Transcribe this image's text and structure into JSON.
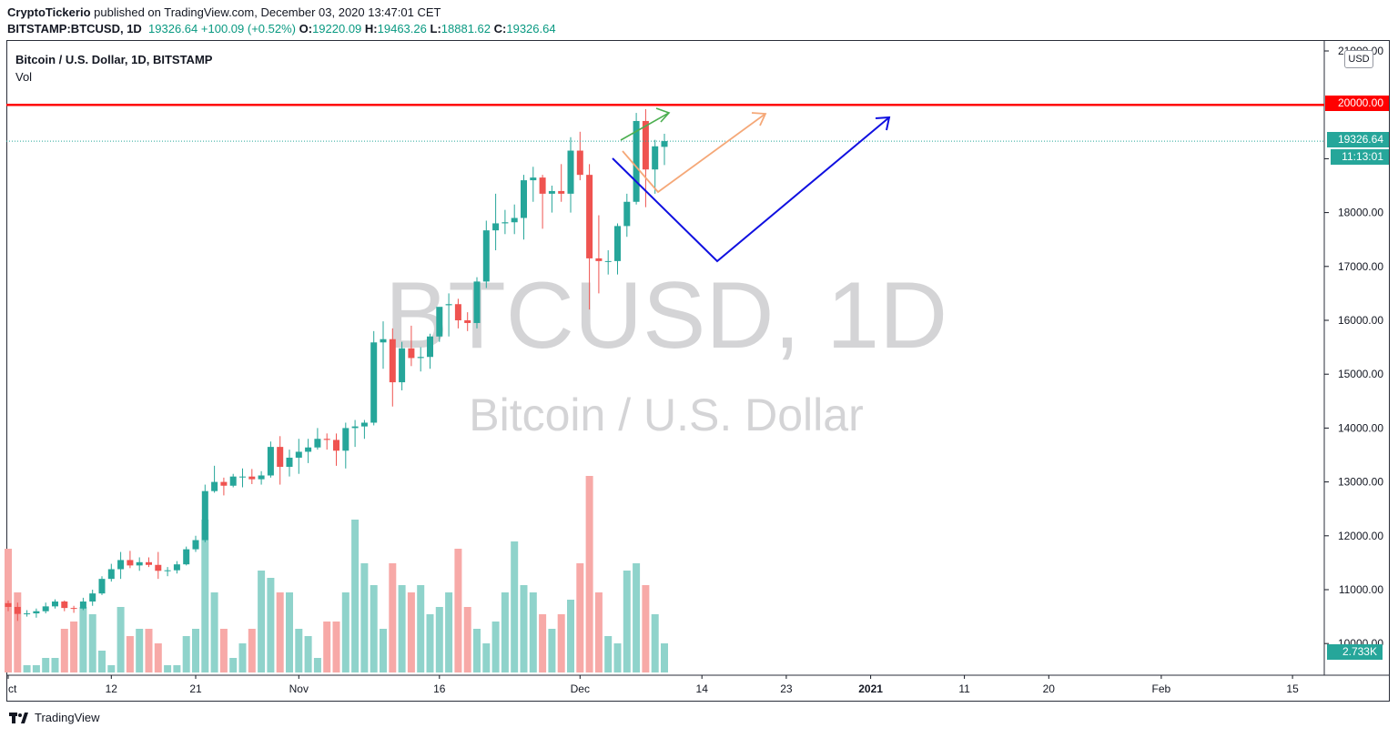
{
  "header": {
    "publisher": "CryptoTickerio",
    "published_text": "published on TradingView.com, December 03, 2020 13:47:01 CET",
    "symbol": "BITSTAMP:BTCUSD, 1D",
    "last": "19326.64",
    "change": "+100.09 (+0.52%)",
    "o_label": "O:",
    "o_value": "19220.09",
    "h_label": "H:",
    "h_value": "19463.26",
    "l_label": "L:",
    "l_value": "18881.62",
    "c_label": "C:",
    "c_value": "19326.64"
  },
  "pane": {
    "title": "Bitcoin / U.S. Dollar, 1D, BITSTAMP",
    "indicator": "Vol",
    "currency": "USD"
  },
  "watermark": {
    "line1": "BTCUSD, 1D",
    "line2": "Bitcoin / U.S. Dollar"
  },
  "price_labels": {
    "resistance": "20000.00",
    "last_price": "19326.64",
    "countdown": "11:13:01",
    "volume": "2.733K"
  },
  "footer": {
    "brand": "TradingView"
  },
  "colors": {
    "up": "#26a69a",
    "down": "#ef5350",
    "vol_up": "#8fd3cb",
    "vol_down": "#f7a9a7",
    "resistance": "#ff0000",
    "arrow_green": "#4caf50",
    "arrow_orange": "#f5a878",
    "arrow_blue": "#1010e0",
    "axis_text": "#131722"
  },
  "chart_data": {
    "type": "candlestick",
    "title": "Bitcoin / U.S. Dollar, 1D, BITSTAMP",
    "y_ticks": [
      10000,
      11000,
      12000,
      13000,
      14000,
      15000,
      16000,
      17000,
      18000,
      19000,
      20000,
      21000
    ],
    "y_tick_labels": [
      "10000.00",
      "11000.00",
      "12000.00",
      "13000.00",
      "14000.00",
      "15000.00",
      "16000.00",
      "17000.00",
      "18000.00",
      "19000.00",
      "",
      "21000.00"
    ],
    "ylim": [
      9600,
      21100
    ],
    "x_ticks": [
      {
        "label": "ct",
        "index": 0
      },
      {
        "label": "12",
        "index": 11
      },
      {
        "label": "21",
        "index": 20
      },
      {
        "label": "Nov",
        "index": 31
      },
      {
        "label": "16",
        "index": 46
      },
      {
        "label": "Dec",
        "index": 61
      },
      {
        "label": "14",
        "index": 74
      },
      {
        "label": "23",
        "index": 83
      },
      {
        "label": "2021",
        "index": 92
      },
      {
        "label": "11",
        "index": 102
      },
      {
        "label": "20",
        "index": 111
      },
      {
        "label": "Feb",
        "index": 123
      },
      {
        "label": "15",
        "index": 137
      }
    ],
    "x_axis_days": 138,
    "candles": [
      {
        "o": 10750,
        "h": 10800,
        "l": 10600,
        "c": 10680
      },
      {
        "o": 10680,
        "h": 10760,
        "l": 10420,
        "c": 10550
      },
      {
        "o": 10550,
        "h": 10620,
        "l": 10500,
        "c": 10560
      },
      {
        "o": 10560,
        "h": 10650,
        "l": 10480,
        "c": 10600
      },
      {
        "o": 10600,
        "h": 10760,
        "l": 10560,
        "c": 10690
      },
      {
        "o": 10690,
        "h": 10820,
        "l": 10650,
        "c": 10780
      },
      {
        "o": 10780,
        "h": 10800,
        "l": 10600,
        "c": 10660
      },
      {
        "o": 10660,
        "h": 10700,
        "l": 10570,
        "c": 10650
      },
      {
        "o": 10650,
        "h": 10850,
        "l": 10620,
        "c": 10780
      },
      {
        "o": 10780,
        "h": 11000,
        "l": 10700,
        "c": 10930
      },
      {
        "o": 10930,
        "h": 11250,
        "l": 10900,
        "c": 11200
      },
      {
        "o": 11200,
        "h": 11480,
        "l": 11150,
        "c": 11380
      },
      {
        "o": 11380,
        "h": 11700,
        "l": 11200,
        "c": 11550
      },
      {
        "o": 11550,
        "h": 11720,
        "l": 11400,
        "c": 11450
      },
      {
        "o": 11450,
        "h": 11600,
        "l": 11350,
        "c": 11510
      },
      {
        "o": 11510,
        "h": 11600,
        "l": 11420,
        "c": 11460
      },
      {
        "o": 11460,
        "h": 11700,
        "l": 11200,
        "c": 11350
      },
      {
        "o": 11350,
        "h": 11420,
        "l": 11250,
        "c": 11360
      },
      {
        "o": 11360,
        "h": 11530,
        "l": 11300,
        "c": 11470
      },
      {
        "o": 11470,
        "h": 11800,
        "l": 11450,
        "c": 11750
      },
      {
        "o": 11750,
        "h": 12000,
        "l": 11700,
        "c": 11920
      },
      {
        "o": 11920,
        "h": 12950,
        "l": 11880,
        "c": 12830
      },
      {
        "o": 12830,
        "h": 13300,
        "l": 12800,
        "c": 13000
      },
      {
        "o": 13000,
        "h": 13080,
        "l": 12750,
        "c": 12930
      },
      {
        "o": 12930,
        "h": 13150,
        "l": 12900,
        "c": 13100
      },
      {
        "o": 13100,
        "h": 13250,
        "l": 12900,
        "c": 13100
      },
      {
        "o": 13100,
        "h": 13240,
        "l": 12960,
        "c": 13050
      },
      {
        "o": 13050,
        "h": 13200,
        "l": 12950,
        "c": 13120
      },
      {
        "o": 13120,
        "h": 13750,
        "l": 13080,
        "c": 13650
      },
      {
        "o": 13650,
        "h": 13850,
        "l": 12950,
        "c": 13280
      },
      {
        "o": 13280,
        "h": 13600,
        "l": 13100,
        "c": 13450
      },
      {
        "o": 13450,
        "h": 13800,
        "l": 13150,
        "c": 13560
      },
      {
        "o": 13560,
        "h": 13800,
        "l": 13350,
        "c": 13640
      },
      {
        "o": 13640,
        "h": 14000,
        "l": 13600,
        "c": 13800
      },
      {
        "o": 13800,
        "h": 13900,
        "l": 13600,
        "c": 13780
      },
      {
        "o": 13780,
        "h": 13900,
        "l": 13300,
        "c": 13580
      },
      {
        "o": 13580,
        "h": 14100,
        "l": 13250,
        "c": 14000
      },
      {
        "o": 14000,
        "h": 14150,
        "l": 13650,
        "c": 14030
      },
      {
        "o": 14030,
        "h": 14150,
        "l": 13800,
        "c": 14100
      },
      {
        "o": 14100,
        "h": 15800,
        "l": 14050,
        "c": 15590
      },
      {
        "o": 15590,
        "h": 15980,
        "l": 15100,
        "c": 15650
      },
      {
        "o": 15650,
        "h": 15850,
        "l": 14400,
        "c": 14850
      },
      {
        "o": 14850,
        "h": 15600,
        "l": 14700,
        "c": 15480
      },
      {
        "o": 15480,
        "h": 15900,
        "l": 15150,
        "c": 15300
      },
      {
        "o": 15300,
        "h": 15500,
        "l": 15050,
        "c": 15320
      },
      {
        "o": 15320,
        "h": 15750,
        "l": 15100,
        "c": 15700
      },
      {
        "o": 15700,
        "h": 16200,
        "l": 15600,
        "c": 16250
      },
      {
        "o": 16280,
        "h": 16500,
        "l": 15700,
        "c": 16300
      },
      {
        "o": 16300,
        "h": 16400,
        "l": 15850,
        "c": 16000
      },
      {
        "o": 16000,
        "h": 16150,
        "l": 15800,
        "c": 15950
      },
      {
        "o": 15950,
        "h": 16800,
        "l": 15850,
        "c": 16720
      },
      {
        "o": 16720,
        "h": 17850,
        "l": 16600,
        "c": 17670
      },
      {
        "o": 17670,
        "h": 18350,
        "l": 17300,
        "c": 17800
      },
      {
        "o": 17800,
        "h": 18050,
        "l": 17600,
        "c": 17820
      },
      {
        "o": 17820,
        "h": 18150,
        "l": 17600,
        "c": 17900
      },
      {
        "o": 17900,
        "h": 18700,
        "l": 17500,
        "c": 18600
      },
      {
        "o": 18600,
        "h": 18850,
        "l": 18200,
        "c": 18650
      },
      {
        "o": 18650,
        "h": 18700,
        "l": 17700,
        "c": 18350
      },
      {
        "o": 18350,
        "h": 18500,
        "l": 18000,
        "c": 18400
      },
      {
        "o": 18400,
        "h": 18900,
        "l": 18200,
        "c": 18350
      },
      {
        "o": 18350,
        "h": 19400,
        "l": 18000,
        "c": 19150
      },
      {
        "o": 19150,
        "h": 19500,
        "l": 18600,
        "c": 18700
      },
      {
        "o": 18700,
        "h": 18900,
        "l": 16200,
        "c": 17150
      },
      {
        "o": 17150,
        "h": 17950,
        "l": 16500,
        "c": 17100
      },
      {
        "o": 17100,
        "h": 17300,
        "l": 16850,
        "c": 17100
      },
      {
        "o": 17100,
        "h": 17800,
        "l": 16850,
        "c": 17750
      },
      {
        "o": 17750,
        "h": 18350,
        "l": 17550,
        "c": 18200
      },
      {
        "o": 18200,
        "h": 19850,
        "l": 18150,
        "c": 19700
      },
      {
        "o": 19700,
        "h": 19920,
        "l": 18100,
        "c": 18800
      },
      {
        "o": 18800,
        "h": 19350,
        "l": 18350,
        "c": 19230
      },
      {
        "o": 19220.09,
        "h": 19463.26,
        "l": 18881.62,
        "c": 19326.64
      }
    ],
    "volume": [
      0.85,
      0.55,
      0.05,
      0.05,
      0.1,
      0.1,
      0.3,
      0.35,
      0.45,
      0.4,
      0.15,
      0.05,
      0.45,
      0.25,
      0.3,
      0.3,
      0.2,
      0.05,
      0.05,
      0.25,
      0.3,
      1.05,
      0.55,
      0.3,
      0.1,
      0.2,
      0.3,
      0.7,
      0.65,
      0.55,
      0.55,
      0.3,
      0.25,
      0.1,
      0.35,
      0.35,
      0.55,
      1.05,
      0.75,
      0.6,
      0.3,
      0.75,
      0.6,
      0.55,
      0.6,
      0.4,
      0.45,
      0.55,
      0.85,
      0.45,
      0.3,
      0.2,
      0.35,
      0.55,
      0.9,
      0.6,
      0.55,
      0.4,
      0.3,
      0.4,
      0.5,
      0.75,
      1.35,
      0.55,
      0.25,
      0.2,
      0.7,
      0.75,
      0.6,
      0.4,
      0.2
    ],
    "resistance_level": 20000
  }
}
